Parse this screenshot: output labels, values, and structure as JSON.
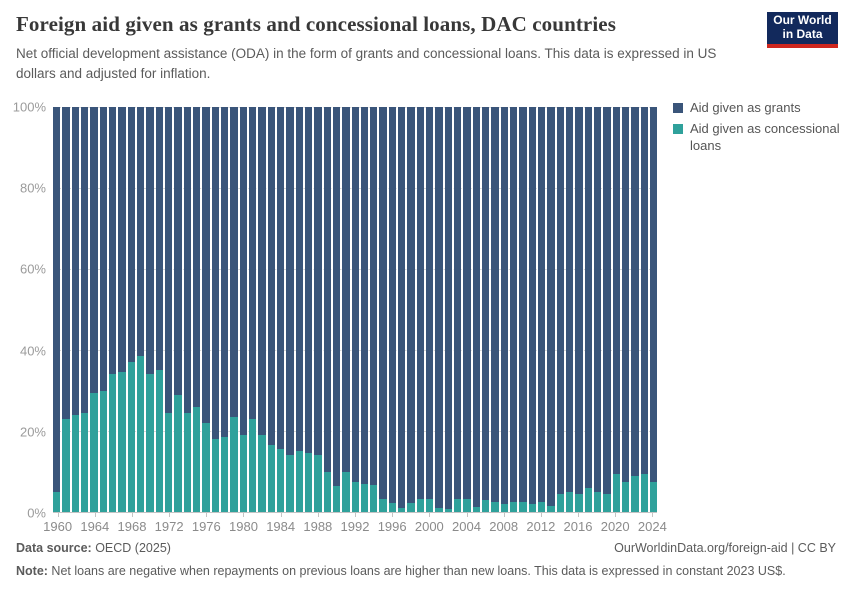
{
  "header": {
    "title": "Foreign aid given as grants and concessional loans, DAC countries",
    "subtitle": "Net official development assistance (ODA) in the form of grants and concessional loans. This data is expressed in US dollars and adjusted for inflation."
  },
  "logo": {
    "line1": "Our World",
    "line2": "in Data"
  },
  "legend": {
    "items": [
      {
        "label": "Aid given as grants",
        "color": "#3a557a"
      },
      {
        "label": "Aid given as concessional loans",
        "color": "#2fa19b"
      }
    ]
  },
  "chart_data": {
    "type": "bar",
    "stacked": true,
    "normalized": "percent",
    "title": "Foreign aid given as grants and concessional loans, DAC countries",
    "xlabel": "",
    "ylabel": "",
    "ylim": [
      0,
      100
    ],
    "yticks": [
      0,
      20,
      40,
      60,
      80,
      100
    ],
    "ytick_labels": [
      "0%",
      "20%",
      "40%",
      "60%",
      "80%",
      "100%"
    ],
    "xticks": [
      1960,
      1964,
      1968,
      1972,
      1976,
      1980,
      1984,
      1988,
      1992,
      1996,
      2000,
      2004,
      2008,
      2012,
      2016,
      2020,
      2024
    ],
    "grid": true,
    "legend_position": "right",
    "x": [
      1960,
      1961,
      1962,
      1963,
      1964,
      1965,
      1966,
      1967,
      1968,
      1969,
      1970,
      1971,
      1972,
      1973,
      1974,
      1975,
      1976,
      1977,
      1978,
      1979,
      1980,
      1981,
      1982,
      1983,
      1984,
      1985,
      1986,
      1987,
      1988,
      1989,
      1990,
      1991,
      1992,
      1993,
      1994,
      1995,
      1996,
      1997,
      1998,
      1999,
      2000,
      2001,
      2002,
      2003,
      2004,
      2005,
      2006,
      2007,
      2008,
      2009,
      2010,
      2011,
      2012,
      2013,
      2014,
      2015,
      2016,
      2017,
      2018,
      2019,
      2020,
      2021,
      2022,
      2023,
      2024
    ],
    "series": [
      {
        "name": "Aid given as grants",
        "color": "#3a557a",
        "values": [
          95,
          77,
          76,
          75.5,
          70.5,
          70,
          66,
          65.5,
          63,
          61.5,
          66,
          65,
          75.5,
          71,
          75.5,
          74,
          78,
          82,
          81.5,
          76.5,
          81,
          77,
          81,
          83.5,
          84.5,
          86,
          85,
          85.5,
          86,
          90,
          93.5,
          90,
          92.7,
          93,
          93.3,
          96.7,
          97.7,
          99,
          97.9,
          96.7,
          96.9,
          99,
          99.3,
          96.9,
          96.7,
          98.7,
          97,
          97.5,
          98,
          97.5,
          97.5,
          98,
          97.5,
          98.5,
          95.5,
          95,
          95.5,
          94,
          95,
          95.5,
          90.5,
          92.5,
          91,
          90.5,
          92.5
        ]
      },
      {
        "name": "Aid given as concessional loans",
        "color": "#2fa19b",
        "values": [
          5,
          23,
          24,
          24.5,
          29.5,
          30,
          34,
          34.5,
          37,
          38.5,
          34,
          35,
          24.5,
          29,
          24.5,
          26,
          22,
          18,
          18.5,
          23.5,
          19,
          23,
          19,
          16.5,
          15.5,
          14,
          15,
          14.5,
          14,
          10,
          6.5,
          10,
          7.3,
          7,
          6.7,
          3.3,
          2.3,
          1,
          2.1,
          3.3,
          3.1,
          1,
          0.7,
          3.1,
          3.3,
          1.3,
          3,
          2.5,
          2,
          2.5,
          2.5,
          2,
          2.5,
          1.5,
          4.5,
          5,
          4.5,
          6,
          5,
          4.5,
          9.5,
          7.5,
          9,
          9.5,
          7.5
        ]
      }
    ]
  },
  "footer": {
    "datasource_label": "Data source:",
    "datasource_value": " OECD (2025)",
    "attribution": "OurWorldinData.org/foreign-aid | CC BY",
    "note_label": "Note:",
    "note_value": " Net loans are negative when repayments on previous loans are higher than new loans. This data is expressed in constant 2023 US$."
  }
}
